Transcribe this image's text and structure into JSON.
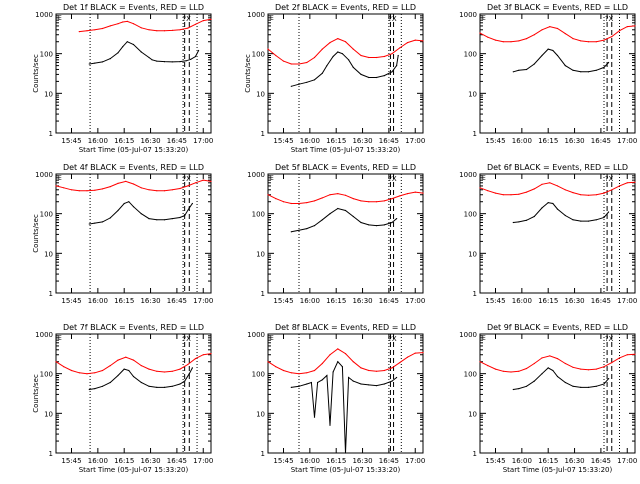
{
  "figure": {
    "panel_title_suffix": " BLACK = Events, RED = LLD",
    "xlabel": "Start Time (05-Jul-07 15:33:20)",
    "ylabel": "Counts/sec"
  },
  "chart_data": [
    {
      "type": "line",
      "title": "Det 1f BLACK = Events, RED = LLD",
      "xlabel": "Start Time (05-Jul-07 15:33:20)",
      "ylabel": "Counts/sec",
      "y_scale": "log",
      "ylim": [
        1,
        1000
      ],
      "y_ticks": [
        "1",
        "10",
        "100",
        "1000"
      ],
      "x_ticks": [
        "15:45",
        "16:00",
        "16:15",
        "16:30",
        "16:45",
        "17:00"
      ],
      "x_range_min": [
        0,
        100
      ],
      "series": [
        {
          "name": "BLACK = Events",
          "color": "#000000",
          "x": [
            21.5,
            25,
            30,
            35,
            40,
            43,
            46,
            50,
            55,
            60,
            62,
            65,
            70,
            75,
            80,
            84,
            87,
            90,
            92
          ],
          "y": [
            55,
            58,
            62,
            75,
            105,
            150,
            200,
            170,
            110,
            80,
            70,
            65,
            63,
            62,
            63,
            66,
            72,
            85,
            120
          ]
        },
        {
          "name": "RED = LLD",
          "color": "#ff0000",
          "x": [
            15,
            20,
            25,
            30,
            35,
            40,
            43,
            46,
            50,
            55,
            60,
            65,
            70,
            75,
            80,
            85,
            90,
            95,
            100
          ],
          "y": [
            360,
            380,
            400,
            430,
            500,
            570,
            630,
            650,
            570,
            450,
            400,
            380,
            380,
            385,
            400,
            440,
            550,
            680,
            740
          ]
        }
      ],
      "markers": {
        "dotted": [
          22,
          82,
          91
        ],
        "dashed": [
          83,
          86
        ],
        "label": "?X"
      }
    },
    {
      "type": "line",
      "title": "Det 2f BLACK = Events, RED = LLD",
      "xlabel": "Start Time (05-Jul-07 15:33:20)",
      "ylabel": "Counts/sec",
      "y_scale": "log",
      "ylim": [
        1,
        1000
      ],
      "y_ticks": [
        "1",
        "10",
        "100",
        "1000"
      ],
      "x_ticks": [
        "15:45",
        "16:00",
        "16:15",
        "16:30",
        "16:45",
        "17:00"
      ],
      "x_range_min": [
        0,
        100
      ],
      "series": [
        {
          "name": "BLACK = Events",
          "color": "#000000",
          "x": [
            15,
            20,
            25,
            30,
            35,
            38,
            42,
            45,
            48,
            52,
            55,
            60,
            65,
            70,
            75,
            80,
            83,
            84
          ],
          "y": [
            15,
            17,
            19,
            22,
            32,
            50,
            85,
            110,
            100,
            70,
            45,
            30,
            25,
            25,
            28,
            35,
            50,
            90
          ]
        },
        {
          "name": "RED = LLD",
          "color": "#ff0000",
          "x": [
            0,
            5,
            10,
            15,
            20,
            25,
            30,
            35,
            40,
            45,
            50,
            55,
            60,
            65,
            70,
            75,
            80,
            85,
            90,
            95,
            100
          ],
          "y": [
            130,
            90,
            65,
            55,
            55,
            60,
            80,
            130,
            190,
            240,
            200,
            130,
            90,
            80,
            80,
            85,
            100,
            140,
            190,
            220,
            210
          ]
        }
      ],
      "markers": {
        "dotted": [
          20,
          78,
          86
        ],
        "dashed": [
          79,
          81
        ],
        "label": "?X"
      }
    },
    {
      "type": "line",
      "title": "Det 3f BLACK = Events, RED = LLD",
      "xlabel": "",
      "ylabel": "",
      "y_scale": "log",
      "ylim": [
        1,
        1000
      ],
      "y_ticks": [
        "1",
        "10",
        "100",
        "1000"
      ],
      "x_ticks": [
        "15:45",
        "16:00",
        "16:15",
        "16:30",
        "16:45",
        "17:00"
      ],
      "x_range_min": [
        0,
        100
      ],
      "series": [
        {
          "name": "BLACK = Events",
          "color": "#000000",
          "x": [
            21.5,
            25,
            30,
            35,
            40,
            44,
            47,
            50,
            55,
            60,
            65,
            70,
            75,
            80,
            83
          ],
          "y": [
            35,
            38,
            40,
            55,
            90,
            130,
            120,
            90,
            50,
            38,
            35,
            35,
            38,
            45,
            60
          ]
        },
        {
          "name": "RED = LLD",
          "color": "#ff0000",
          "x": [
            0,
            5,
            10,
            15,
            20,
            25,
            30,
            35,
            40,
            45,
            50,
            55,
            60,
            65,
            70,
            75,
            80,
            85,
            90,
            95,
            100
          ],
          "y": [
            330,
            260,
            220,
            200,
            200,
            210,
            240,
            300,
            400,
            480,
            430,
            320,
            240,
            210,
            200,
            200,
            220,
            270,
            380,
            480,
            500
          ]
        }
      ],
      "markers": {
        "dotted": [
          80,
          90
        ],
        "dashed": [
          82,
          85
        ],
        "label": "?X"
      }
    },
    {
      "type": "line",
      "title": "Det 4f BLACK = Events, RED = LLD",
      "xlabel": "",
      "ylabel": "Counts/sec",
      "y_scale": "log",
      "ylim": [
        1,
        1000
      ],
      "y_ticks": [
        "1",
        "10",
        "100",
        "1000"
      ],
      "x_ticks": [
        "15:45",
        "16:00",
        "16:15",
        "16:30",
        "16:45",
        "17:00"
      ],
      "x_range_min": [
        0,
        100
      ],
      "series": [
        {
          "name": "BLACK = Events",
          "color": "#000000",
          "x": [
            21.5,
            25,
            30,
            35,
            40,
            44,
            47,
            50,
            55,
            60,
            65,
            70,
            75,
            80,
            83,
            86,
            88
          ],
          "y": [
            55,
            58,
            62,
            78,
            120,
            180,
            200,
            150,
            100,
            75,
            70,
            70,
            75,
            80,
            90,
            140,
            180
          ]
        },
        {
          "name": "RED = LLD",
          "color": "#ff0000",
          "x": [
            0,
            5,
            10,
            15,
            20,
            25,
            30,
            35,
            40,
            45,
            50,
            55,
            60,
            65,
            70,
            75,
            80,
            85,
            90,
            95,
            100
          ],
          "y": [
            500,
            450,
            400,
            380,
            380,
            390,
            420,
            480,
            580,
            650,
            560,
            450,
            400,
            380,
            380,
            400,
            430,
            500,
            600,
            700,
            650
          ]
        }
      ],
      "markers": {
        "dotted": [
          22,
          82,
          91
        ],
        "dashed": [
          83,
          86
        ],
        "label": "?X"
      }
    },
    {
      "type": "line",
      "title": "Det 5f BLACK = Events, RED = LLD",
      "xlabel": "",
      "ylabel": "",
      "y_scale": "log",
      "ylim": [
        1,
        1000
      ],
      "y_ticks": [
        "1",
        "10",
        "100",
        "1000"
      ],
      "x_ticks": [
        "15:45",
        "16:00",
        "16:15",
        "16:30",
        "16:45",
        "17:00"
      ],
      "x_range_min": [
        0,
        100
      ],
      "series": [
        {
          "name": "BLACK = Events",
          "color": "#000000",
          "x": [
            15,
            20,
            25,
            30,
            35,
            40,
            45,
            50,
            55,
            60,
            65,
            70,
            75,
            80,
            83
          ],
          "y": [
            35,
            38,
            42,
            50,
            70,
            100,
            135,
            120,
            85,
            60,
            52,
            50,
            52,
            60,
            75
          ]
        },
        {
          "name": "RED = LLD",
          "color": "#ff0000",
          "x": [
            0,
            5,
            10,
            15,
            20,
            25,
            30,
            35,
            40,
            45,
            50,
            55,
            60,
            65,
            70,
            75,
            80,
            85,
            90,
            95,
            100
          ],
          "y": [
            300,
            240,
            200,
            180,
            180,
            190,
            210,
            250,
            300,
            320,
            290,
            240,
            210,
            200,
            200,
            210,
            240,
            280,
            320,
            350,
            330
          ]
        }
      ],
      "markers": {
        "dotted": [
          20,
          78,
          86
        ],
        "dashed": [
          79,
          81
        ],
        "label": "?X"
      }
    },
    {
      "type": "line",
      "title": "Det 6f BLACK = Events, RED = LLD",
      "xlabel": "",
      "ylabel": "",
      "y_scale": "log",
      "ylim": [
        1,
        1000
      ],
      "y_ticks": [
        "1",
        "10",
        "100",
        "1000"
      ],
      "x_ticks": [
        "15:45",
        "16:00",
        "16:15",
        "16:30",
        "16:45",
        "17:00"
      ],
      "x_range_min": [
        0,
        100
      ],
      "series": [
        {
          "name": "BLACK = Events",
          "color": "#000000",
          "x": [
            21.5,
            25,
            30,
            35,
            40,
            44,
            47,
            50,
            55,
            60,
            65,
            70,
            75,
            80,
            83
          ],
          "y": [
            60,
            62,
            68,
            85,
            140,
            190,
            180,
            130,
            90,
            70,
            65,
            65,
            70,
            80,
            110
          ]
        },
        {
          "name": "RED = LLD",
          "color": "#ff0000",
          "x": [
            0,
            5,
            10,
            15,
            20,
            25,
            30,
            35,
            40,
            45,
            50,
            55,
            60,
            65,
            70,
            75,
            80,
            85,
            90,
            95,
            100
          ],
          "y": [
            450,
            380,
            330,
            300,
            300,
            310,
            350,
            420,
            550,
            600,
            500,
            400,
            340,
            300,
            290,
            300,
            330,
            400,
            500,
            600,
            620
          ]
        }
      ],
      "markers": {
        "dotted": [
          80,
          90
        ],
        "dashed": [
          82,
          85
        ],
        "label": "?X"
      }
    },
    {
      "type": "line",
      "title": "Det 7f BLACK = Events, RED = LLD",
      "xlabel": "Start Time (05-Jul-07 15:33:20)",
      "ylabel": "Counts/sec",
      "y_scale": "log",
      "ylim": [
        1,
        1000
      ],
      "y_ticks": [
        "1",
        "10",
        "100",
        "1000"
      ],
      "x_ticks": [
        "15:45",
        "16:00",
        "16:15",
        "16:30",
        "16:45",
        "17:00"
      ],
      "x_range_min": [
        0,
        100
      ],
      "series": [
        {
          "name": "BLACK = Events",
          "color": "#000000",
          "x": [
            21.5,
            25,
            30,
            35,
            40,
            44,
            47,
            50,
            55,
            60,
            65,
            70,
            75,
            80,
            83,
            86,
            88
          ],
          "y": [
            40,
            42,
            48,
            60,
            90,
            130,
            120,
            85,
            60,
            48,
            45,
            45,
            48,
            55,
            65,
            100,
            140
          ]
        },
        {
          "name": "RED = LLD",
          "color": "#ff0000",
          "x": [
            0,
            5,
            10,
            15,
            20,
            25,
            30,
            35,
            40,
            45,
            50,
            55,
            60,
            65,
            70,
            75,
            80,
            85,
            90,
            95,
            100
          ],
          "y": [
            200,
            150,
            120,
            105,
            100,
            105,
            120,
            160,
            220,
            260,
            220,
            160,
            130,
            115,
            110,
            115,
            130,
            170,
            240,
            300,
            320
          ]
        }
      ],
      "markers": {
        "dotted": [
          22,
          82,
          91
        ],
        "dashed": [
          83,
          86
        ],
        "label": "?X"
      }
    },
    {
      "type": "line",
      "title": "Det 8f BLACK = Events, RED = LLD",
      "xlabel": "Start Time (05-Jul-07 15:33:20)",
      "ylabel": "",
      "y_scale": "log",
      "ylim": [
        1,
        1000
      ],
      "y_ticks": [
        "1",
        "10",
        "100",
        "1000"
      ],
      "x_ticks": [
        "15:45",
        "16:00",
        "16:15",
        "16:30",
        "16:45",
        "17:00"
      ],
      "x_range_min": [
        0,
        100
      ],
      "series": [
        {
          "name": "BLACK = Events",
          "color": "#000000",
          "x": [
            15,
            20,
            25,
            28,
            30,
            32,
            35,
            38,
            40,
            42,
            45,
            48,
            50,
            52,
            55,
            60,
            65,
            70,
            75,
            80,
            83
          ],
          "y": [
            45,
            48,
            55,
            60,
            8,
            60,
            70,
            90,
            5,
            110,
            200,
            150,
            1,
            80,
            65,
            55,
            52,
            50,
            55,
            65,
            80
          ]
        },
        {
          "name": "RED = LLD",
          "color": "#ff0000",
          "x": [
            0,
            5,
            10,
            15,
            20,
            25,
            30,
            35,
            40,
            45,
            50,
            55,
            60,
            65,
            70,
            75,
            80,
            85,
            90,
            95,
            100
          ],
          "y": [
            200,
            150,
            120,
            105,
            100,
            105,
            120,
            180,
            300,
            420,
            320,
            200,
            140,
            120,
            115,
            120,
            140,
            190,
            260,
            330,
            340
          ]
        }
      ],
      "markers": {
        "dotted": [
          20,
          78,
          86
        ],
        "dashed": [
          79,
          81
        ],
        "label": "?X"
      }
    },
    {
      "type": "line",
      "title": "Det 9f BLACK = Events, RED = LLD",
      "xlabel": "Start Time (05-Jul-07 15:33:20)",
      "ylabel": "",
      "y_scale": "log",
      "ylim": [
        1,
        1000
      ],
      "y_ticks": [
        "1",
        "10",
        "100",
        "1000"
      ],
      "x_ticks": [
        "15:45",
        "16:00",
        "16:15",
        "16:30",
        "16:45",
        "17:00"
      ],
      "x_range_min": [
        0,
        100
      ],
      "series": [
        {
          "name": "BLACK = Events",
          "color": "#000000",
          "x": [
            21.5,
            25,
            30,
            35,
            40,
            44,
            47,
            50,
            55,
            60,
            65,
            70,
            75,
            80,
            83
          ],
          "y": [
            40,
            42,
            48,
            65,
            100,
            140,
            120,
            85,
            60,
            48,
            45,
            45,
            48,
            55,
            75
          ]
        },
        {
          "name": "RED = LLD",
          "color": "#ff0000",
          "x": [
            0,
            5,
            10,
            15,
            20,
            25,
            30,
            35,
            40,
            45,
            50,
            55,
            60,
            65,
            70,
            75,
            80,
            85,
            90,
            95,
            100
          ],
          "y": [
            200,
            160,
            130,
            115,
            110,
            115,
            135,
            180,
            250,
            280,
            240,
            180,
            145,
            130,
            125,
            130,
            150,
            190,
            250,
            300,
            310
          ]
        }
      ],
      "markers": {
        "dotted": [
          80,
          90
        ],
        "dashed": [
          82,
          85
        ],
        "label": "?X"
      }
    }
  ]
}
